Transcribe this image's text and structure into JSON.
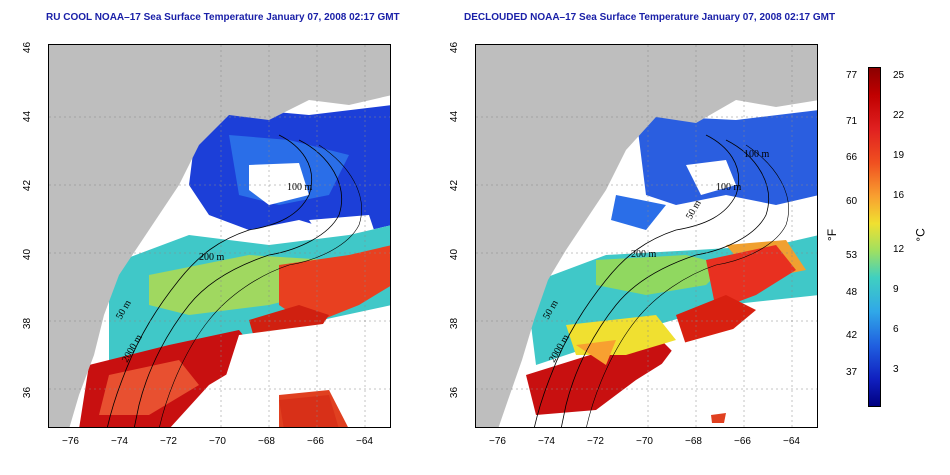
{
  "panels": [
    {
      "title": "RU COOL NOAA–17 Sea Surface Temperature January 07, 2008 02:17 GMT",
      "contour_labels": [
        "100 m",
        "200 m",
        "50 m",
        "2000 m"
      ]
    },
    {
      "title": "DECLOUDED NOAA–17 Sea Surface Temperature January 07, 2008 02:17 GMT",
      "contour_labels": [
        "100 m",
        "100 m",
        "200 m",
        "50 m",
        "50 m",
        "2000 m"
      ]
    }
  ],
  "x_ticks": [
    "−76",
    "−74",
    "−72",
    "−70",
    "−68",
    "−66",
    "−64"
  ],
  "y_ticks": [
    "46",
    "44",
    "42",
    "40",
    "38",
    "36"
  ],
  "colorbar": {
    "fahrenheit_ticks": [
      "77",
      "71",
      "66",
      "60",
      "53",
      "48",
      "42",
      "37"
    ],
    "celsius_ticks": [
      "25",
      "22",
      "19",
      "16",
      "12",
      "9",
      "6",
      "3"
    ],
    "fahrenheit_unit": "°F",
    "celsius_unit": "°C"
  },
  "colors": {
    "land": "#bebebe",
    "title": "#1a20a8",
    "warm": "#c81010",
    "cold": "#1c3fd8"
  }
}
